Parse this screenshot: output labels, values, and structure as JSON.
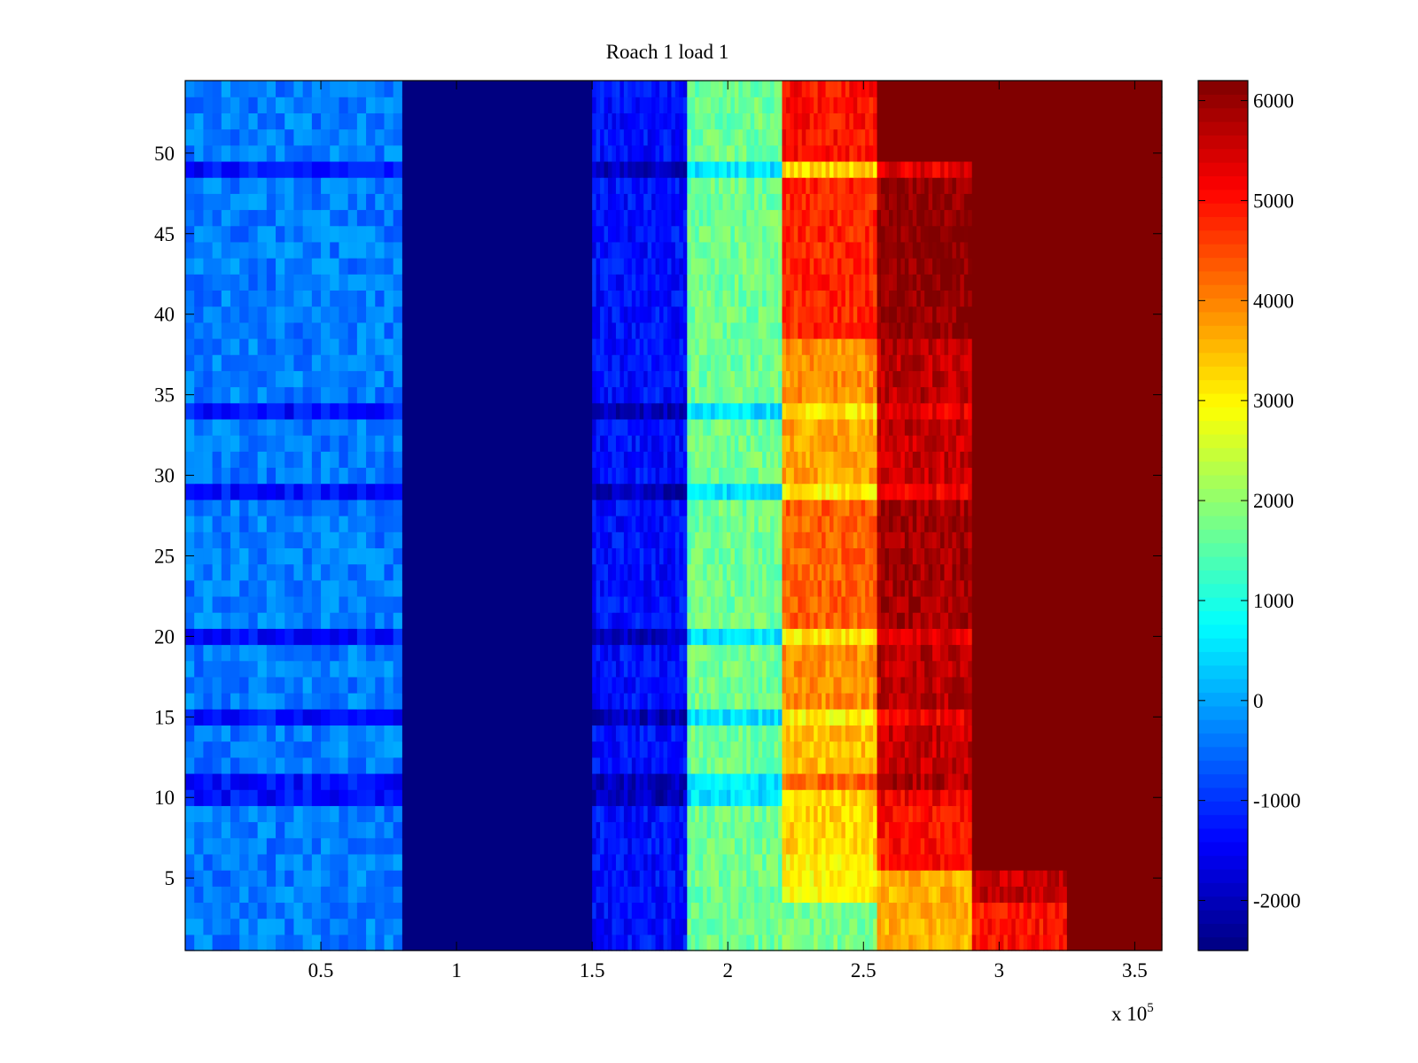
{
  "chart_data": {
    "type": "heatmap",
    "title": "Roach 1 load 1",
    "xlabel": "",
    "ylabel": "",
    "x_scale_note": "x 10^5",
    "x_multiplier_base": "x 10",
    "x_multiplier_exp": "5",
    "xlim": [
      0,
      3.6
    ],
    "ylim": [
      0.5,
      54.5
    ],
    "xticks": [
      0.5,
      1,
      1.5,
      2,
      2.5,
      3,
      3.5
    ],
    "xtick_labels": [
      "0.5",
      "1",
      "1.5",
      "2",
      "2.5",
      "3",
      "3.5"
    ],
    "yticks": [
      5,
      10,
      15,
      20,
      25,
      30,
      35,
      40,
      45,
      50
    ],
    "ytick_labels": [
      "5",
      "10",
      "15",
      "20",
      "25",
      "30",
      "35",
      "40",
      "45",
      "50"
    ],
    "colormap": "jet",
    "clim": [
      -2500,
      6200
    ],
    "colorbar_ticks": [
      -2000,
      -1000,
      0,
      1000,
      2000,
      3000,
      4000,
      5000,
      6000
    ],
    "colorbar_labels": [
      "-2000",
      "-1000",
      "0",
      "1000",
      "2000",
      "3000",
      "4000",
      "5000",
      "6000"
    ],
    "grid": false,
    "rows": 54,
    "bands": [
      {
        "x_start": 0.0,
        "x_end": 0.8,
        "base_value": -350,
        "dip_value": -1300
      },
      {
        "x_start": 0.8,
        "x_end": 1.5,
        "base_value": -2500,
        "dip_value": -2500
      },
      {
        "x_start": 1.5,
        "x_end": 1.85,
        "base_value": -1300,
        "dip_value": -2000
      },
      {
        "x_start": 1.85,
        "x_end": 2.2,
        "base_value": 1700,
        "dip_value": 500
      },
      {
        "x_start": 2.2,
        "x_end": 2.55,
        "base_value": 4400,
        "dip_value": 3100
      },
      {
        "x_start": 2.55,
        "x_end": 2.9,
        "base_value": 6200,
        "dip_value": 5000
      },
      {
        "x_start": 2.9,
        "x_end": 3.25,
        "base_value": 6200,
        "dip_value": 6200
      },
      {
        "x_start": 3.25,
        "x_end": 3.6,
        "base_value": 6200,
        "dip_value": 6200
      }
    ],
    "dip_rows": [
      49,
      34,
      29,
      20,
      15,
      11,
      10
    ],
    "band7_rows": [
      {
        "rows": [
          1,
          5
        ],
        "value": 3600
      },
      {
        "rows": [
          6,
          9
        ],
        "value": 5000
      },
      {
        "rows": [
          10,
          10
        ],
        "value": 5200
      },
      {
        "rows": [
          11,
          11
        ],
        "value": 5800
      },
      {
        "rows": [
          12,
          14
        ],
        "value": 5600
      },
      {
        "rows": [
          15,
          15
        ],
        "value": 5200
      },
      {
        "rows": [
          16,
          19
        ],
        "value": 5700
      },
      {
        "rows": [
          20,
          20
        ],
        "value": 5300
      },
      {
        "rows": [
          21,
          28
        ],
        "value": 5900
      },
      {
        "rows": [
          29,
          29
        ],
        "value": 5200
      },
      {
        "rows": [
          30,
          33
        ],
        "value": 5600
      },
      {
        "rows": [
          34,
          34
        ],
        "value": 5300
      },
      {
        "rows": [
          35,
          38
        ],
        "value": 5700
      },
      {
        "rows": [
          39,
          48
        ],
        "value": 6100
      },
      {
        "rows": [
          49,
          49
        ],
        "value": 5300
      },
      {
        "rows": [
          50,
          54
        ],
        "value": 6200
      }
    ],
    "band6_rows": [
      {
        "rows": [
          1,
          3
        ],
        "value": 1800
      },
      {
        "rows": [
          4,
          6
        ],
        "value": 3000
      },
      {
        "rows": [
          7,
          10
        ],
        "value": 3300
      },
      {
        "rows": [
          11,
          11
        ],
        "value": 4300
      },
      {
        "rows": [
          12,
          14
        ],
        "value": 3500
      },
      {
        "rows": [
          15,
          15
        ],
        "value": 3000
      },
      {
        "rows": [
          16,
          19
        ],
        "value": 3900
      },
      {
        "rows": [
          20,
          20
        ],
        "value": 3100
      },
      {
        "rows": [
          21,
          28
        ],
        "value": 4300
      },
      {
        "rows": [
          29,
          29
        ],
        "value": 3100
      },
      {
        "rows": [
          30,
          33
        ],
        "value": 3700
      },
      {
        "rows": [
          34,
          34
        ],
        "value": 3100
      },
      {
        "rows": [
          35,
          38
        ],
        "value": 3900
      },
      {
        "rows": [
          39,
          48
        ],
        "value": 4800
      },
      {
        "rows": [
          49,
          49
        ],
        "value": 3300
      },
      {
        "rows": [
          50,
          54
        ],
        "value": 5000
      }
    ],
    "band9_rows": [
      {
        "rows": [
          1,
          3
        ],
        "value": 5000
      },
      {
        "rows": [
          4,
          5
        ],
        "value": 5600
      },
      {
        "rows": [
          6,
          54
        ],
        "value": 6200
      }
    ]
  }
}
